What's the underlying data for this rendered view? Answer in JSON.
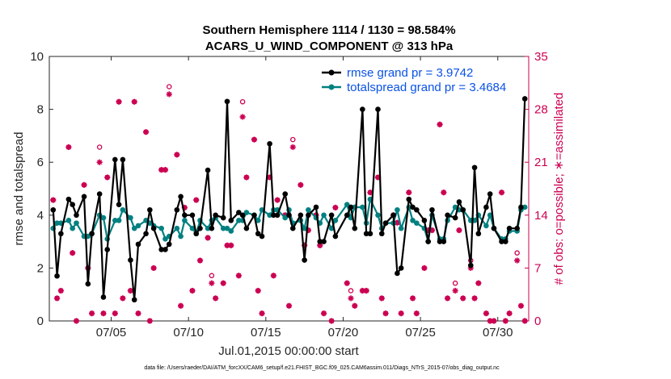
{
  "chart_data": {
    "type": "line",
    "title_line1": "Southern Hemisphere 1114 / 1130 = 98.584%",
    "title_line2": "ACARS_U_WIND_COMPONENT @ 313 hPa",
    "ylabel": "rmse and totalspread",
    "y2label": "# of obs: o=possible; ∗=assimilated",
    "xlabel": "Jul.01,2015 00:00:00 start",
    "footnote": "data file: /Users/raeder/DAI/ATM_forcXX/CAM6_setup/f.e21.FHIST_BGC.f09_025.CAM6assim.011/Diags_NTrS_2015-07/obs_diag_output.nc",
    "xlim": [
      1,
      32
    ],
    "ylim": [
      0,
      10
    ],
    "y2lim": [
      0,
      35
    ],
    "xticks": [
      {
        "value": 5,
        "label": "07/05"
      },
      {
        "value": 10,
        "label": "07/10"
      },
      {
        "value": 15,
        "label": "07/15"
      },
      {
        "value": 20,
        "label": "07/20"
      },
      {
        "value": 25,
        "label": "07/25"
      },
      {
        "value": 30,
        "label": "07/30"
      }
    ],
    "yticks": [
      {
        "value": 0,
        "label": "0"
      },
      {
        "value": 2,
        "label": "2"
      },
      {
        "value": 4,
        "label": "4"
      },
      {
        "value": 6,
        "label": "6"
      },
      {
        "value": 8,
        "label": "8"
      },
      {
        "value": 10,
        "label": "10"
      }
    ],
    "y2ticks": [
      {
        "value": 0,
        "label": "0"
      },
      {
        "value": 7,
        "label": "7"
      },
      {
        "value": 14,
        "label": "14"
      },
      {
        "value": 21,
        "label": "21"
      },
      {
        "value": 28,
        "label": "28"
      },
      {
        "value": 35,
        "label": "35"
      }
    ],
    "series": [
      {
        "name": "rmse grand pr = 3.9742",
        "color": "#000000",
        "x": [
          1.25,
          1.5,
          1.75,
          2.25,
          2.5,
          2.75,
          3.25,
          3.5,
          3.75,
          4.25,
          4.5,
          4.75,
          5.25,
          5.5,
          5.75,
          6.25,
          6.5,
          6.75,
          7.25,
          7.5,
          7.75,
          8.25,
          8.5,
          8.75,
          9.25,
          9.5,
          9.75,
          10.25,
          10.5,
          10.75,
          11.25,
          11.5,
          11.75,
          12.25,
          12.5,
          12.75,
          13.25,
          13.5,
          13.75,
          14.25,
          14.5,
          14.75,
          15.25,
          15.5,
          15.75,
          16.25,
          16.5,
          16.75,
          17.25,
          17.5,
          17.75,
          18.25,
          18.5,
          18.75,
          19.25,
          19.5,
          20.25,
          20.5,
          20.75,
          21.25,
          21.5,
          21.75,
          22.25,
          22.5,
          22.75,
          23.25,
          23.5,
          23.75,
          24.25,
          24.5,
          24.75,
          25.25,
          25.5,
          25.75,
          26.25,
          26.5,
          26.75,
          27.25,
          27.5,
          27.75,
          28.25,
          28.5,
          28.75,
          29.25,
          29.5,
          29.75,
          30.25,
          30.5,
          30.75,
          31.25,
          31.5,
          31.75
        ],
        "values": [
          4.2,
          1.7,
          3.3,
          4.6,
          4.4,
          4.0,
          4.7,
          1.4,
          3.3,
          4.8,
          0.9,
          2.7,
          6.1,
          4.4,
          6.1,
          2.3,
          0.8,
          2.9,
          3.3,
          4.2,
          3.5,
          2.7,
          2.7,
          2.9,
          4.2,
          4.7,
          4.0,
          4.0,
          3.3,
          3.5,
          5.7,
          3.5,
          4.0,
          3.9,
          8.3,
          3.8,
          4.1,
          4.0,
          3.5,
          4.0,
          3.3,
          3.2,
          6.7,
          4.0,
          4.0,
          4.8,
          4.0,
          3.5,
          4.0,
          2.3,
          4.0,
          4.3,
          3.0,
          3.0,
          4.0,
          3.2,
          4.0,
          4.3,
          3.5,
          8.0,
          3.3,
          3.3,
          8.0,
          3.3,
          3.7,
          4.0,
          1.8,
          2.0,
          4.6,
          4.3,
          4.2,
          3.8,
          3.0,
          4.2,
          3.0,
          3.0,
          4.0,
          3.9,
          4.5,
          4.2,
          2.1,
          5.8,
          3.3,
          4.3,
          4.8,
          3.5,
          3.0,
          3.0,
          3.5,
          3.5,
          4.3,
          8.4
        ]
      },
      {
        "name": "totalspread grand pr = 3.4684",
        "color": "#008080",
        "x": [
          1.25,
          1.5,
          1.75,
          2.25,
          2.5,
          2.75,
          3.25,
          3.5,
          3.75,
          4.25,
          4.5,
          4.75,
          5.25,
          5.5,
          5.75,
          6.25,
          6.5,
          6.75,
          7.25,
          7.5,
          7.75,
          8.25,
          8.5,
          8.75,
          9.25,
          9.5,
          9.75,
          10.25,
          10.5,
          10.75,
          11.25,
          11.5,
          11.75,
          12.25,
          12.5,
          12.75,
          13.25,
          13.5,
          13.75,
          14.25,
          14.5,
          14.75,
          15.25,
          15.5,
          15.75,
          16.25,
          16.5,
          16.75,
          17.25,
          17.5,
          17.75,
          18.25,
          18.5,
          18.75,
          19.25,
          19.5,
          20.25,
          20.5,
          20.75,
          21.25,
          21.5,
          21.75,
          22.25,
          22.5,
          22.75,
          23.25,
          23.5,
          23.75,
          24.25,
          24.5,
          24.75,
          25.25,
          25.5,
          25.75,
          26.25,
          26.5,
          26.75,
          27.25,
          27.5,
          27.75,
          28.25,
          28.5,
          28.75,
          29.25,
          29.5,
          29.75,
          30.25,
          30.5,
          30.75,
          31.25,
          31.5,
          31.75
        ],
        "values": [
          3.5,
          3.7,
          3.7,
          3.8,
          3.5,
          3.7,
          3.2,
          3.2,
          3.3,
          4.0,
          3.9,
          3.1,
          3.8,
          3.8,
          4.2,
          3.9,
          3.5,
          3.6,
          3.8,
          3.7,
          3.6,
          3.5,
          3.1,
          3.2,
          3.5,
          3.2,
          3.8,
          3.5,
          3.3,
          3.8,
          3.5,
          3.8,
          3.9,
          3.5,
          3.5,
          3.4,
          3.8,
          3.8,
          4.1,
          4.0,
          3.8,
          4.2,
          4.0,
          4.2,
          4.2,
          3.9,
          4.2,
          3.7,
          3.8,
          3.5,
          4.2,
          3.9,
          3.7,
          4.0,
          3.5,
          3.8,
          4.4,
          3.9,
          4.3,
          4.3,
          3.7,
          4.6,
          4.0,
          3.5,
          3.7,
          3.7,
          4.2,
          3.5,
          4.3,
          3.8,
          3.7,
          3.5,
          3.0,
          4.0,
          3.1,
          3.1,
          3.8,
          4.3,
          4.2,
          4.2,
          3.8,
          3.8,
          4.0,
          3.6,
          4.0,
          3.5,
          3.1,
          3.1,
          3.4,
          3.4,
          4.2,
          4.3
        ]
      }
    ],
    "obs_possible": {
      "name": "possible",
      "marker": "o",
      "color": "#cc0052",
      "x": [
        1.25,
        1.5,
        1.75,
        2.25,
        2.5,
        2.75,
        3.25,
        3.5,
        3.75,
        4.25,
        4.5,
        4.75,
        5.25,
        5.5,
        5.75,
        6.25,
        6.5,
        6.75,
        7.25,
        7.5,
        7.75,
        8.25,
        8.5,
        8.75,
        9.25,
        9.5,
        9.75,
        10.25,
        10.5,
        10.75,
        11.25,
        11.5,
        11.75,
        12.25,
        12.5,
        12.75,
        13.25,
        13.5,
        13.75,
        14.25,
        14.5,
        14.75,
        15.25,
        15.5,
        15.75,
        16.25,
        16.5,
        16.75,
        17.25,
        17.5,
        17.75,
        18.25,
        18.5,
        18.75,
        19.25,
        19.5,
        20.25,
        20.5,
        20.75,
        21.25,
        21.5,
        21.75,
        22.25,
        22.5,
        22.75,
        23.25,
        23.5,
        23.75,
        24.25,
        24.5,
        24.75,
        25.25,
        25.5,
        25.75,
        26.25,
        26.5,
        26.75,
        27.25,
        27.5,
        27.75,
        28.25,
        28.5,
        28.75,
        29.25,
        29.5,
        29.75,
        30.25,
        30.5,
        30.75,
        31.25,
        31.5,
        31.75
      ],
      "values": [
        16,
        3,
        4,
        23,
        9,
        0,
        18,
        7,
        1,
        23,
        1,
        19,
        1,
        29,
        3,
        4,
        29,
        1,
        25,
        0,
        7,
        20,
        20,
        31,
        22,
        2,
        15,
        4,
        16,
        8,
        11,
        6,
        3,
        5,
        10,
        10,
        6,
        29,
        19,
        24,
        4,
        1,
        19,
        6,
        16,
        14,
        2,
        24,
        18,
        10,
        12,
        14,
        10,
        1,
        0,
        15,
        5,
        4,
        2,
        4,
        4,
        17,
        19,
        3,
        1,
        14,
        13,
        1,
        17,
        3,
        1,
        7,
        12,
        12,
        26,
        17,
        3,
        5,
        12,
        3,
        8,
        3,
        5,
        1,
        0,
        0,
        17,
        0,
        1,
        9,
        2,
        0
      ]
    },
    "obs_assimilated": {
      "name": "assimilated",
      "marker": "*",
      "color": "#cc0052",
      "x": [
        1.25,
        1.5,
        1.75,
        2.25,
        2.5,
        2.75,
        3.25,
        3.5,
        3.75,
        4.25,
        4.5,
        4.75,
        5.25,
        5.5,
        5.75,
        6.25,
        6.5,
        6.75,
        7.25,
        7.5,
        7.75,
        8.25,
        8.5,
        8.75,
        9.25,
        9.5,
        9.75,
        10.25,
        10.5,
        10.75,
        11.25,
        11.5,
        11.75,
        12.25,
        12.5,
        12.75,
        13.25,
        13.5,
        13.75,
        14.25,
        14.5,
        14.75,
        15.25,
        15.5,
        15.75,
        16.25,
        16.5,
        16.75,
        17.25,
        17.5,
        17.75,
        18.25,
        18.5,
        18.75,
        19.25,
        19.5,
        20.25,
        20.5,
        20.75,
        21.25,
        21.5,
        21.75,
        22.25,
        22.5,
        22.75,
        23.25,
        23.5,
        23.75,
        24.25,
        24.5,
        24.75,
        25.25,
        25.5,
        25.75,
        26.25,
        26.5,
        26.75,
        27.25,
        27.5,
        27.75,
        28.25,
        28.5,
        28.75,
        29.25,
        29.5,
        29.75,
        30.25,
        30.5,
        30.75,
        31.25,
        31.5,
        31.75
      ],
      "values": [
        16,
        3,
        4,
        23,
        9,
        0,
        18,
        7,
        1,
        21,
        1,
        19,
        1,
        29,
        3,
        4,
        29,
        1,
        25,
        0,
        7,
        20,
        20,
        30,
        22,
        2,
        15,
        4,
        16,
        8,
        11,
        5,
        3,
        5,
        10,
        10,
        6,
        27,
        19,
        24,
        4,
        1,
        19,
        6,
        16,
        14,
        2,
        23,
        18,
        10,
        12,
        14,
        10,
        1,
        0,
        15,
        5,
        3,
        2,
        4,
        4,
        17,
        19,
        3,
        1,
        14,
        13,
        1,
        17,
        3,
        1,
        7,
        12,
        12,
        26,
        17,
        3,
        4,
        12,
        3,
        7,
        3,
        5,
        1,
        0,
        0,
        17,
        0,
        1,
        8,
        2,
        0
      ]
    }
  }
}
